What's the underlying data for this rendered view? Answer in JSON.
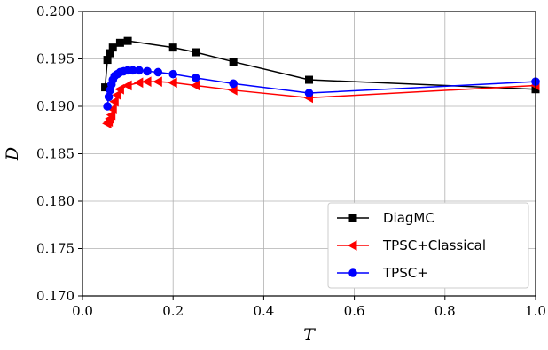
{
  "chart_data": {
    "type": "line",
    "xlabel": "T",
    "ylabel": "D",
    "xlim": [
      0.0,
      1.0
    ],
    "ylim": [
      0.17,
      0.2
    ],
    "x_ticks": [
      0.0,
      0.2,
      0.4,
      0.6,
      0.8,
      1.0
    ],
    "x_tick_labels": [
      "0.0",
      "0.2",
      "0.4",
      "0.6",
      "0.8",
      "1.0"
    ],
    "y_ticks": [
      0.17,
      0.175,
      0.18,
      0.185,
      0.19,
      0.195,
      0.2
    ],
    "y_tick_labels": [
      "0.170",
      "0.175",
      "0.180",
      "0.185",
      "0.190",
      "0.195",
      "0.200"
    ],
    "grid": true,
    "legend_position": "bottom-right",
    "series": [
      {
        "name": "DiagMC",
        "color": "#000000",
        "marker": "square",
        "x": [
          0.05,
          0.055,
          0.06,
          0.067,
          0.083,
          0.1,
          0.2,
          0.25,
          0.333,
          0.5,
          1.0
        ],
        "y": [
          0.192,
          0.1949,
          0.1956,
          0.1962,
          0.1967,
          0.1969,
          0.1962,
          0.1957,
          0.1947,
          0.1928,
          0.1918
        ]
      },
      {
        "name": "TPSC+Classical",
        "color": "#ff0000",
        "marker": "triangle-left",
        "x": [
          0.055,
          0.058,
          0.061,
          0.064,
          0.067,
          0.071,
          0.077,
          0.083,
          0.1,
          0.125,
          0.143,
          0.167,
          0.2,
          0.25,
          0.333,
          0.5,
          1.0
        ],
        "y": [
          0.1882,
          0.1884,
          0.1887,
          0.1891,
          0.1897,
          0.1905,
          0.1912,
          0.1918,
          0.1922,
          0.1925,
          0.1926,
          0.1926,
          0.1925,
          0.1922,
          0.1917,
          0.1909,
          0.1922
        ]
      },
      {
        "name": "TPSC+",
        "color": "#0000ff",
        "marker": "circle",
        "x": [
          0.055,
          0.058,
          0.061,
          0.064,
          0.067,
          0.071,
          0.077,
          0.083,
          0.091,
          0.1,
          0.111,
          0.125,
          0.143,
          0.167,
          0.2,
          0.25,
          0.333,
          0.5,
          1.0
        ],
        "y": [
          0.19,
          0.191,
          0.1917,
          0.1923,
          0.1928,
          0.1932,
          0.1934,
          0.1936,
          0.1937,
          0.1938,
          0.1938,
          0.1938,
          0.1937,
          0.1936,
          0.1934,
          0.193,
          0.1924,
          0.1914,
          0.1926
        ]
      }
    ]
  }
}
